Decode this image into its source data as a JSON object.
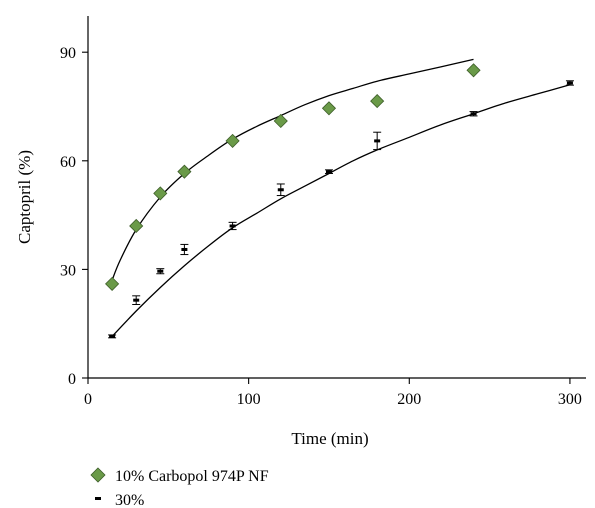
{
  "chart_data": {
    "type": "scatter",
    "xlabel": "Time (min)",
    "ylabel": "Captopril (%)",
    "xlim": [
      0,
      310
    ],
    "ylim": [
      0,
      100
    ],
    "x_ticks": [
      0,
      100,
      200,
      300
    ],
    "y_ticks": [
      0,
      30,
      60,
      90
    ],
    "grid": false,
    "legend_position": "bottom-left",
    "series": [
      {
        "name": "10% Carbopol 974P NF",
        "marker": "diamond",
        "color": "#6a9a48",
        "x": [
          15,
          30,
          45,
          60,
          90,
          120,
          150,
          180,
          240
        ],
        "y": [
          26,
          42,
          51,
          57,
          65.5,
          71,
          74.5,
          76.5,
          85
        ],
        "err": [
          0,
          0,
          0,
          0,
          0,
          0,
          0,
          0,
          0
        ],
        "fit": {
          "x": [
            15,
            20,
            30,
            45,
            60,
            75,
            90,
            105,
            120,
            135,
            150,
            165,
            180,
            200,
            220,
            240
          ],
          "y": [
            27,
            32.5,
            41,
            50,
            56.5,
            61.5,
            66,
            69.5,
            72.5,
            75.5,
            78,
            80,
            82,
            84,
            86,
            88
          ]
        }
      },
      {
        "name": "30%",
        "marker": "dash",
        "color": "#000000",
        "x": [
          15,
          30,
          45,
          60,
          90,
          120,
          150,
          180,
          240,
          300
        ],
        "y": [
          11.5,
          21.5,
          29.5,
          35.5,
          42,
          52,
          57,
          65.5,
          73,
          81.5
        ],
        "err": [
          0.4,
          1.2,
          0.7,
          1.4,
          1.0,
          1.6,
          0.5,
          2.4,
          0.6,
          0.6
        ],
        "fit": {
          "x": [
            15,
            30,
            45,
            60,
            75,
            90,
            105,
            120,
            135,
            150,
            165,
            180,
            200,
            220,
            240,
            260,
            280,
            300
          ],
          "y": [
            11.5,
            18.5,
            25,
            31,
            36.5,
            41.5,
            45.5,
            49.5,
            53,
            56.5,
            60,
            63,
            66.5,
            70,
            73,
            76,
            78.5,
            81
          ]
        }
      }
    ]
  }
}
